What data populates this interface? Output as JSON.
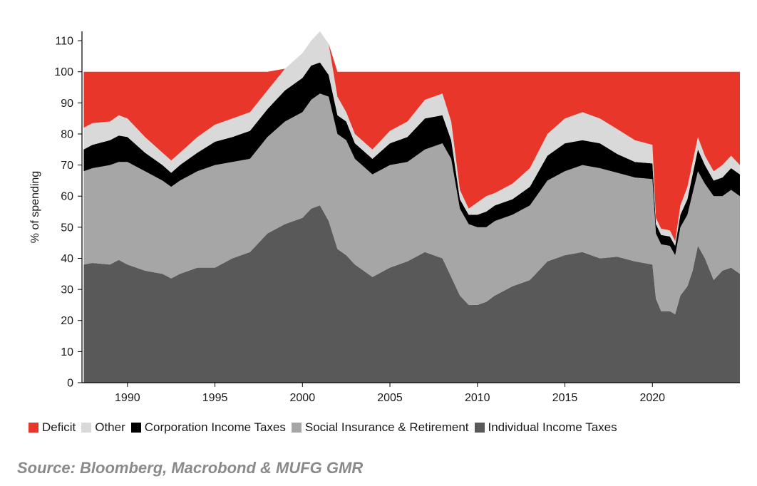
{
  "chart_data": {
    "type": "area",
    "stacked": true,
    "ylabel": "% of spending",
    "ylim": [
      0,
      113
    ],
    "xlim": [
      1987.4,
      2025.0
    ],
    "yticks": [
      0,
      10,
      20,
      30,
      40,
      50,
      60,
      70,
      80,
      90,
      100,
      110
    ],
    "xticks": [
      1990,
      1995,
      2000,
      2005,
      2010,
      2015,
      2020
    ],
    "legend_position": "bottom",
    "grid": false,
    "x": [
      1987.5,
      1988.0,
      1989.0,
      1989.5,
      1990.0,
      1991.0,
      1992.0,
      1992.5,
      1993.0,
      1994.0,
      1995.0,
      1996.0,
      1997.0,
      1998.0,
      1999.0,
      2000.0,
      2000.5,
      2001.0,
      2001.5,
      2002.0,
      2002.5,
      2003.0,
      2004.0,
      2005.0,
      2006.0,
      2007.0,
      2008.0,
      2008.5,
      2009.0,
      2009.5,
      2010.0,
      2010.5,
      2011.0,
      2012.0,
      2013.0,
      2014.0,
      2015.0,
      2016.0,
      2017.0,
      2018.0,
      2019.0,
      2020.0,
      2020.2,
      2020.5,
      2021.0,
      2021.3,
      2021.6,
      2022.0,
      2022.3,
      2022.6,
      2023.0,
      2023.5,
      2024.0,
      2024.5,
      2025.0
    ],
    "series": [
      {
        "name": "Individual Income Taxes",
        "color": "#595959",
        "values": [
          38,
          38.5,
          38,
          39.5,
          38,
          36,
          35,
          33.5,
          35,
          37,
          37,
          40,
          42,
          48,
          51,
          53,
          56,
          57,
          52,
          43,
          41,
          38,
          34,
          37,
          39,
          42,
          40,
          34,
          28,
          25,
          25,
          26,
          28,
          31,
          33,
          39,
          41,
          42,
          40,
          40.5,
          39,
          38,
          27,
          23,
          23,
          22,
          28,
          31,
          36,
          44,
          40,
          33,
          36,
          37,
          35
        ]
      },
      {
        "name": "Social Insurance & Retirement",
        "color": "#a6a6a6",
        "values": [
          30,
          30.5,
          32,
          31.5,
          33,
          32,
          30,
          29.5,
          30,
          31,
          33,
          31,
          30,
          31,
          33,
          34,
          35,
          36,
          40,
          37,
          37,
          34,
          33,
          33,
          32,
          33,
          37,
          38,
          28,
          26,
          25,
          24,
          24,
          23,
          24,
          26,
          27,
          28,
          29,
          27,
          27,
          27.5,
          21,
          21.5,
          21,
          19,
          22,
          23,
          25,
          24,
          24,
          27,
          24,
          25,
          25
        ]
      },
      {
        "name": "Corporation Income Taxes",
        "color": "#000000",
        "values": [
          7,
          7.5,
          8,
          8.5,
          8,
          6,
          5,
          4.5,
          5,
          6,
          7.5,
          8,
          9,
          9,
          10,
          11,
          11,
          10,
          7,
          6,
          6,
          5,
          5,
          7,
          8,
          10,
          9,
          6,
          3,
          3,
          4,
          5,
          5,
          5,
          6,
          8,
          9,
          8,
          8,
          6,
          5,
          5,
          3,
          3,
          3,
          3,
          4,
          5,
          6,
          7,
          6,
          5,
          6,
          7,
          7
        ]
      },
      {
        "name": "Other",
        "color": "#d9d9d9",
        "values": [
          7,
          7,
          6,
          6.5,
          6,
          5,
          4,
          4,
          4,
          5,
          5.5,
          6,
          6,
          6,
          7,
          8,
          8,
          10,
          10,
          6,
          3,
          3,
          3,
          4,
          5,
          6,
          7,
          6,
          3,
          2,
          4,
          5,
          4,
          5,
          6,
          7,
          8,
          9,
          8,
          8,
          7,
          6,
          2,
          2,
          2,
          1.5,
          3,
          4,
          4,
          4,
          3,
          3,
          4,
          4,
          3
        ]
      },
      {
        "name": "Deficit",
        "color": "#e8362a",
        "values": [
          18,
          16.5,
          16,
          14,
          15,
          21,
          26,
          28.5,
          26,
          21,
          17,
          15,
          13,
          6,
          0,
          0,
          0,
          0,
          0,
          8,
          13,
          20,
          25,
          19,
          16,
          9,
          7,
          16,
          38,
          44,
          42,
          40,
          39,
          36,
          31,
          20,
          15,
          13,
          15,
          18.5,
          22,
          23.5,
          47,
          50.5,
          51,
          54.5,
          43,
          37,
          29,
          21,
          27,
          32,
          30,
          27,
          30
        ]
      }
    ]
  },
  "source_text": "Source: Bloomberg, Macrobond & MUFG GMR"
}
